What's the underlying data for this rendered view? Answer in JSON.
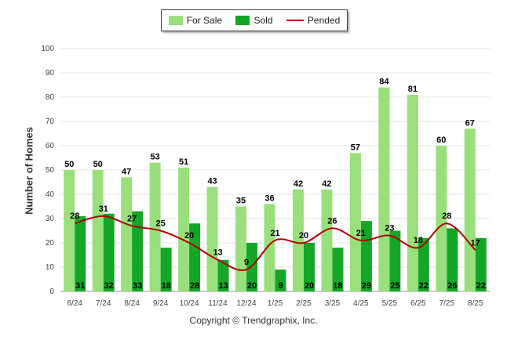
{
  "chart_data": {
    "type": "bar",
    "categories": [
      "6/24",
      "7/24",
      "8/24",
      "9/24",
      "10/24",
      "11/24",
      "12/24",
      "1/25",
      "2/25",
      "3/25",
      "4/25",
      "5/25",
      "6/25",
      "7/25",
      "8/25"
    ],
    "series": [
      {
        "name": "For Sale",
        "type": "bar",
        "color": "#99e07c",
        "values": [
          50,
          50,
          47,
          53,
          51,
          43,
          35,
          36,
          42,
          42,
          57,
          84,
          81,
          60,
          67
        ]
      },
      {
        "name": "Sold",
        "type": "bar",
        "color": "#14a727",
        "values": [
          31,
          32,
          33,
          18,
          28,
          13,
          20,
          9,
          20,
          18,
          29,
          25,
          22,
          26,
          22
        ]
      },
      {
        "name": "Pended",
        "type": "line",
        "color": "#b20000",
        "values": [
          28,
          31,
          27,
          25,
          20,
          13,
          9,
          21,
          20,
          26,
          21,
          23,
          18,
          28,
          17
        ]
      }
    ],
    "xlabel": "",
    "ylabel": "Number of Homes",
    "ylim": [
      0,
      100
    ],
    "yticks": [
      0,
      10,
      20,
      30,
      40,
      50,
      60,
      70,
      80,
      90,
      100
    ],
    "grid": true,
    "legend_position": "top-center"
  },
  "copyright": "Copyright © Trendgraphix, Inc."
}
